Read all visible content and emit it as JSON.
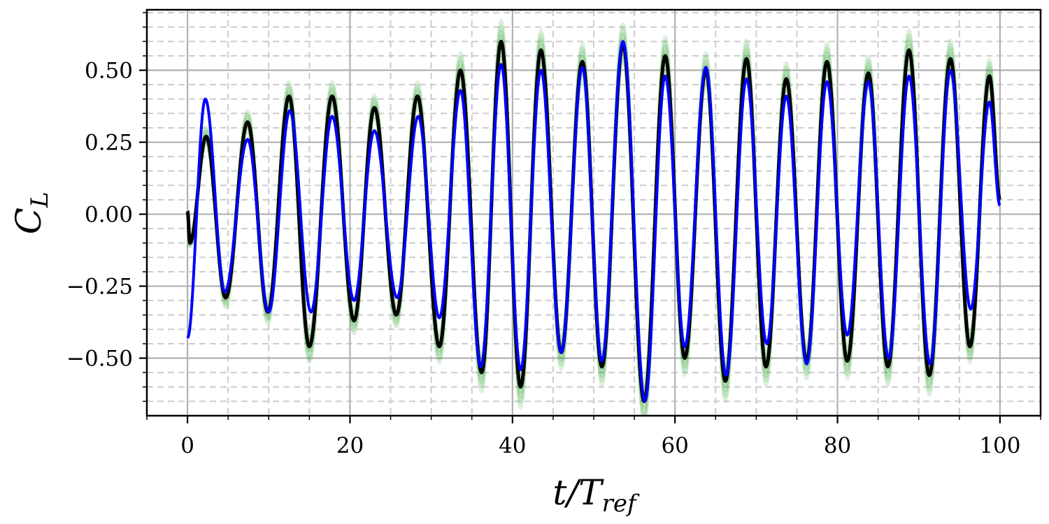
{
  "chart_data": {
    "type": "line",
    "title": "",
    "xlabel": {
      "main": "t/T",
      "sub": "ref"
    },
    "ylabel": {
      "main": "C",
      "sub": "L"
    },
    "xlim": [
      -5,
      105
    ],
    "ylim": [
      -0.7,
      0.71
    ],
    "x_ticks": [
      0,
      20,
      40,
      60,
      80,
      100
    ],
    "x_tick_labels": [
      "0",
      "20",
      "40",
      "60",
      "80",
      "100"
    ],
    "y_ticks": [
      0.5,
      0.25,
      0.0,
      -0.25,
      -0.5
    ],
    "y_tick_labels": [
      "0.50",
      "0.25",
      "0.00",
      "−0.25",
      "−0.50"
    ],
    "grid": {
      "major": true,
      "minor": true,
      "minor_style": "dashed"
    },
    "legend": "none",
    "colors": {
      "ensemble": "#2ca02c",
      "reference": "#000000",
      "prediction": "#0000ff",
      "grid_major": "#b0b0b0",
      "grid_minor": "#cccccc"
    },
    "series": [
      {
        "key": "reference",
        "x": [
          0.0,
          0.3,
          2.3,
          4.7,
          7.4,
          9.9,
          12.5,
          15.0,
          17.8,
          20.5,
          23.0,
          25.7,
          28.3,
          31.0,
          33.6,
          36.2,
          38.6,
          41.0,
          43.5,
          46.0,
          48.6,
          51.0,
          53.6,
          56.2,
          58.8,
          61.2,
          63.8,
          66.2,
          68.8,
          71.2,
          73.7,
          76.2,
          78.7,
          81.2,
          83.8,
          86.2,
          88.8,
          91.3,
          93.9,
          96.3,
          98.7,
          100.0
        ],
        "y": [
          0.01,
          -0.1,
          0.27,
          -0.29,
          0.32,
          -0.34,
          0.41,
          -0.46,
          0.41,
          -0.37,
          0.37,
          -0.35,
          0.41,
          -0.46,
          0.5,
          -0.55,
          0.6,
          -0.6,
          0.57,
          -0.48,
          0.53,
          -0.53,
          0.59,
          -0.65,
          0.55,
          -0.5,
          0.5,
          -0.58,
          0.54,
          -0.53,
          0.47,
          -0.51,
          0.53,
          -0.51,
          0.49,
          -0.53,
          0.57,
          -0.56,
          0.54,
          -0.46,
          0.48,
          0.05
        ]
      },
      {
        "key": "prediction",
        "x": [
          0.0,
          2.2,
          4.6,
          7.4,
          10.0,
          12.6,
          15.2,
          17.8,
          20.5,
          23.0,
          25.8,
          28.4,
          31.0,
          33.6,
          36.1,
          38.6,
          41.0,
          43.5,
          46.0,
          48.6,
          51.0,
          53.6,
          56.3,
          58.8,
          61.2,
          63.8,
          66.3,
          68.8,
          71.3,
          73.7,
          76.2,
          78.7,
          81.2,
          83.8,
          86.3,
          88.8,
          91.4,
          93.9,
          96.4,
          98.7,
          100.0
        ],
        "y": [
          -0.43,
          0.4,
          -0.27,
          0.26,
          -0.34,
          0.36,
          -0.34,
          0.34,
          -0.3,
          0.29,
          -0.29,
          0.34,
          -0.36,
          0.43,
          -0.53,
          0.52,
          -0.54,
          0.5,
          -0.48,
          0.51,
          -0.51,
          0.6,
          -0.65,
          0.48,
          -0.46,
          0.51,
          -0.56,
          0.47,
          -0.45,
          0.41,
          -0.52,
          0.46,
          -0.42,
          0.46,
          -0.5,
          0.48,
          -0.52,
          0.5,
          -0.33,
          0.39,
          0.03
        ]
      }
    ]
  }
}
